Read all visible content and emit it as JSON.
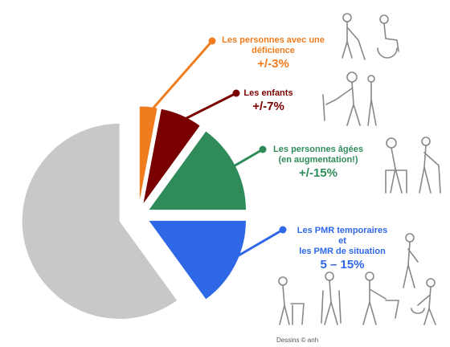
{
  "chart_data": {
    "type": "pie",
    "categories": [
      "Les personnes avec une\ndéficience",
      "Les enfants",
      "Les personnes âgées\n(en augmentation!)",
      "Les PMR temporaires\net\nles PMR de situation",
      null
    ],
    "values": [
      3,
      7,
      15,
      15,
      60
    ],
    "value_labels": [
      "+/-3%",
      "+/-7%",
      "+/-15%",
      "5 – 15%",
      null
    ],
    "colors": [
      "#f07c1e",
      "#7a0000",
      "#2f8b5a",
      "#2f68e6",
      "#c8c8c8"
    ]
  },
  "credit": "Dessins © anh"
}
